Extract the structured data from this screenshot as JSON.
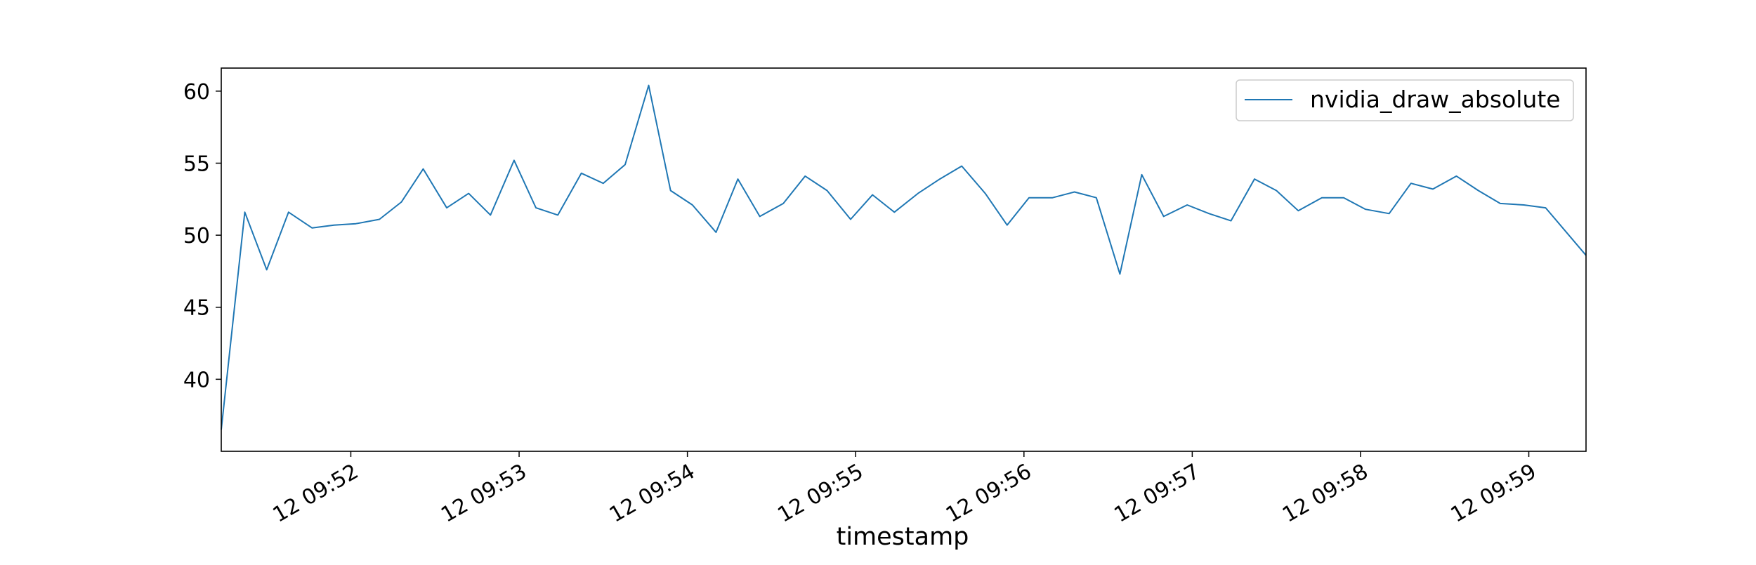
{
  "chart_data": {
    "type": "line",
    "title": "",
    "xlabel": "timestamp",
    "ylabel": "",
    "x_tick_labels": [
      "12 09:52",
      "12 09:53",
      "12 09:54",
      "12 09:55",
      "12 09:56",
      "12 09:57",
      "12 09:58",
      "12 09:59"
    ],
    "x_tick_values": [
      52,
      53,
      54,
      55,
      56,
      57,
      58,
      59
    ],
    "xlim": [
      51.23,
      59.34
    ],
    "y_tick_labels": [
      "40",
      "45",
      "50",
      "55",
      "60"
    ],
    "y_tick_values": [
      40,
      45,
      50,
      55,
      60
    ],
    "ylim": [
      35.0,
      61.6
    ],
    "grid": false,
    "legend_position": "upper right",
    "series": [
      {
        "name": "nvidia_draw_absolute",
        "color": "#1f77b4",
        "points": [
          [
            51.23,
            36.5
          ],
          [
            51.37,
            51.6
          ],
          [
            51.5,
            47.6
          ],
          [
            51.63,
            51.6
          ],
          [
            51.77,
            50.5
          ],
          [
            51.9,
            50.7
          ],
          [
            52.03,
            50.8
          ],
          [
            52.17,
            51.1
          ],
          [
            52.3,
            52.3
          ],
          [
            52.43,
            54.6
          ],
          [
            52.57,
            51.9
          ],
          [
            52.7,
            52.9
          ],
          [
            52.83,
            51.4
          ],
          [
            52.97,
            55.2
          ],
          [
            53.1,
            51.9
          ],
          [
            53.23,
            51.4
          ],
          [
            53.37,
            54.3
          ],
          [
            53.5,
            53.6
          ],
          [
            53.63,
            54.9
          ],
          [
            53.77,
            60.4
          ],
          [
            53.9,
            53.1
          ],
          [
            54.03,
            52.1
          ],
          [
            54.17,
            50.2
          ],
          [
            54.3,
            53.9
          ],
          [
            54.43,
            51.3
          ],
          [
            54.57,
            52.2
          ],
          [
            54.7,
            54.1
          ],
          [
            54.83,
            53.1
          ],
          [
            54.97,
            51.1
          ],
          [
            55.1,
            52.8
          ],
          [
            55.23,
            51.6
          ],
          [
            55.37,
            52.9
          ],
          [
            55.5,
            53.9
          ],
          [
            55.63,
            54.8
          ],
          [
            55.77,
            52.9
          ],
          [
            55.9,
            50.7
          ],
          [
            56.03,
            52.6
          ],
          [
            56.17,
            52.6
          ],
          [
            56.3,
            53.0
          ],
          [
            56.43,
            52.6
          ],
          [
            56.57,
            47.3
          ],
          [
            56.7,
            54.2
          ],
          [
            56.83,
            51.3
          ],
          [
            56.97,
            52.1
          ],
          [
            57.1,
            51.5
          ],
          [
            57.23,
            51.0
          ],
          [
            57.37,
            53.9
          ],
          [
            57.5,
            53.1
          ],
          [
            57.63,
            51.7
          ],
          [
            57.77,
            52.6
          ],
          [
            57.9,
            52.6
          ],
          [
            58.03,
            51.8
          ],
          [
            58.17,
            51.5
          ],
          [
            58.3,
            53.6
          ],
          [
            58.43,
            53.2
          ],
          [
            58.57,
            54.1
          ],
          [
            58.7,
            53.1
          ],
          [
            58.83,
            52.2
          ],
          [
            58.97,
            52.1
          ],
          [
            59.1,
            51.9
          ],
          [
            59.34,
            48.6
          ]
        ]
      }
    ]
  }
}
